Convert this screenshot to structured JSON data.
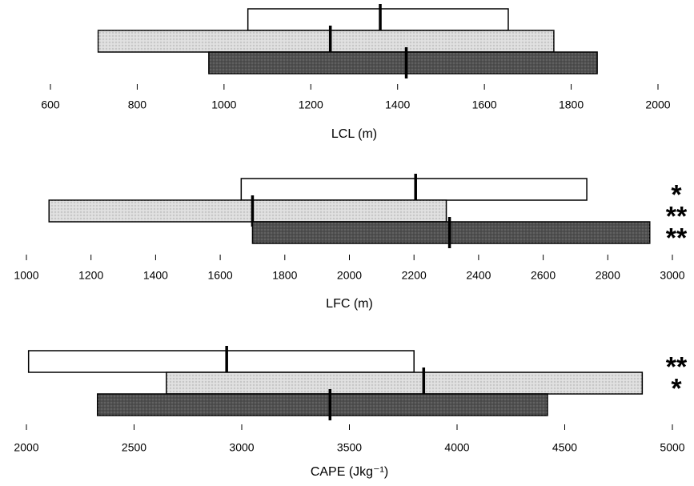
{
  "chart_data": [
    {
      "type": "range",
      "xlabel": "LCL (m)",
      "xlim": [
        600,
        2000
      ],
      "xticks": [
        600,
        800,
        1000,
        1200,
        1400,
        1600,
        1800,
        2000
      ],
      "series": [
        {
          "color": "#ffffff",
          "low": 1055,
          "median": 1360,
          "high": 1655
        },
        {
          "color": "#dedede",
          "low": 710,
          "median": 1245,
          "high": 1760
        },
        {
          "color": "#505050",
          "low": 965,
          "median": 1420,
          "high": 1860
        }
      ]
    },
    {
      "type": "range",
      "xlabel": "LFC (m)",
      "xlim": [
        1000,
        3000
      ],
      "xticks": [
        1000,
        1200,
        1400,
        1600,
        1800,
        2000,
        2200,
        2400,
        2600,
        2800,
        3000
      ],
      "series": [
        {
          "color": "#ffffff",
          "low": 1665,
          "median": 2205,
          "high": 2735,
          "annotation": "*"
        },
        {
          "color": "#dedede",
          "low": 1070,
          "median": 1700,
          "high": 2300,
          "annotation": "**"
        },
        {
          "color": "#505050",
          "low": 1700,
          "median": 2310,
          "high": 2930,
          "annotation": "**"
        }
      ]
    },
    {
      "type": "range",
      "xlabel": "CAPE (Jkg⁻¹)",
      "xlim": [
        2000,
        5000
      ],
      "xticks": [
        2000,
        2500,
        3000,
        3500,
        4000,
        4500,
        5000
      ],
      "series": [
        {
          "color": "#ffffff",
          "low": 2010,
          "median": 2930,
          "high": 3800,
          "annotation": "**"
        },
        {
          "color": "#dedede",
          "low": 2650,
          "median": 3845,
          "high": 4860,
          "annotation": "*"
        },
        {
          "color": "#505050",
          "low": 2330,
          "median": 3410,
          "high": 4420
        }
      ]
    }
  ]
}
